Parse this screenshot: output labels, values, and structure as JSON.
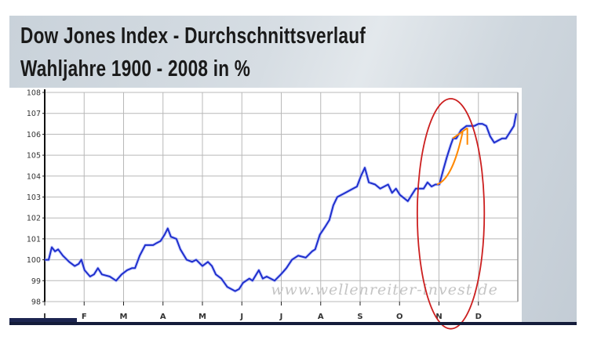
{
  "chart_data": {
    "type": "line",
    "title": "Dow Jones Index - Durchschnittsverlauf",
    "subtitle": "Wahljahre 1900 - 2008 in %",
    "xlabel": "",
    "ylabel": "",
    "xlim": [
      0,
      12
    ],
    "ylim": [
      98,
      108
    ],
    "x_tick_labels": [
      "J",
      "F",
      "M",
      "A",
      "M",
      "J",
      "J",
      "A",
      "S",
      "O",
      "N",
      "D"
    ],
    "y_tick_labels": [
      "108",
      "107",
      "106",
      "105",
      "104",
      "103",
      "102",
      "101",
      "100",
      "99",
      "98"
    ],
    "y_ticks": [
      108,
      107,
      106,
      105,
      104,
      103,
      102,
      101,
      100,
      99,
      98
    ],
    "grid": true,
    "legend": "none",
    "watermark": "www.wellenreiter-invest.de",
    "colors": {
      "line": "#1f2fcc",
      "ellipse": "#cc1f1f",
      "arrow": "#ff8800"
    },
    "series": [
      {
        "points": [
          [
            0,
            100.0
          ],
          [
            0.1,
            100.0
          ],
          [
            0.18,
            100.6
          ],
          [
            0.26,
            100.4
          ],
          [
            0.34,
            100.5
          ],
          [
            0.46,
            100.2
          ],
          [
            0.62,
            99.9
          ],
          [
            0.76,
            99.7
          ],
          [
            0.86,
            99.8
          ],
          [
            0.93,
            100.0
          ],
          [
            1.01,
            99.5
          ],
          [
            1.15,
            99.2
          ],
          [
            1.25,
            99.3
          ],
          [
            1.35,
            99.6
          ],
          [
            1.45,
            99.3
          ],
          [
            1.65,
            99.2
          ],
          [
            1.81,
            99.0
          ],
          [
            1.95,
            99.3
          ],
          [
            2.09,
            99.5
          ],
          [
            2.21,
            99.6
          ],
          [
            2.29,
            99.6
          ],
          [
            2.41,
            100.2
          ],
          [
            2.55,
            100.7
          ],
          [
            2.75,
            100.7
          ],
          [
            2.84,
            100.8
          ],
          [
            2.94,
            100.9
          ],
          [
            3.04,
            101.2
          ],
          [
            3.12,
            101.5
          ],
          [
            3.2,
            101.1
          ],
          [
            3.34,
            101.0
          ],
          [
            3.44,
            100.5
          ],
          [
            3.6,
            100.0
          ],
          [
            3.74,
            99.9
          ],
          [
            3.84,
            100.0
          ],
          [
            4.0,
            99.7
          ],
          [
            4.14,
            99.9
          ],
          [
            4.24,
            99.7
          ],
          [
            4.34,
            99.3
          ],
          [
            4.48,
            99.1
          ],
          [
            4.63,
            98.7
          ],
          [
            4.83,
            98.5
          ],
          [
            4.93,
            98.6
          ],
          [
            5.03,
            98.9
          ],
          [
            5.19,
            99.1
          ],
          [
            5.27,
            99.0
          ],
          [
            5.43,
            99.5
          ],
          [
            5.53,
            99.1
          ],
          [
            5.63,
            99.2
          ],
          [
            5.83,
            99.0
          ],
          [
            5.99,
            99.3
          ],
          [
            6.13,
            99.6
          ],
          [
            6.27,
            100.0
          ],
          [
            6.43,
            100.2
          ],
          [
            6.62,
            100.1
          ],
          [
            6.78,
            100.4
          ],
          [
            6.86,
            100.5
          ],
          [
            6.98,
            101.2
          ],
          [
            7.12,
            101.6
          ],
          [
            7.22,
            101.9
          ],
          [
            7.32,
            102.6
          ],
          [
            7.42,
            103.0
          ],
          [
            7.62,
            103.2
          ],
          [
            7.82,
            103.4
          ],
          [
            7.92,
            103.5
          ],
          [
            8.02,
            104.0
          ],
          [
            8.12,
            104.4
          ],
          [
            8.22,
            103.7
          ],
          [
            8.38,
            103.6
          ],
          [
            8.51,
            103.4
          ],
          [
            8.61,
            103.5
          ],
          [
            8.71,
            103.6
          ],
          [
            8.81,
            103.2
          ],
          [
            8.91,
            103.4
          ],
          [
            9.01,
            103.1
          ],
          [
            9.21,
            102.8
          ],
          [
            9.31,
            103.1
          ],
          [
            9.41,
            103.4
          ],
          [
            9.51,
            103.4
          ],
          [
            9.61,
            103.4
          ],
          [
            9.71,
            103.7
          ],
          [
            9.81,
            103.5
          ],
          [
            9.91,
            103.6
          ],
          [
            10.01,
            103.6
          ],
          [
            10.11,
            104.3
          ],
          [
            10.2,
            104.9
          ],
          [
            10.3,
            105.5
          ],
          [
            10.36,
            105.8
          ],
          [
            10.44,
            105.8
          ],
          [
            10.56,
            106.2
          ],
          [
            10.7,
            106.4
          ],
          [
            10.8,
            106.4
          ],
          [
            10.9,
            106.4
          ],
          [
            11.0,
            106.5
          ],
          [
            11.1,
            106.5
          ],
          [
            11.2,
            106.4
          ],
          [
            11.3,
            105.9
          ],
          [
            11.4,
            105.6
          ],
          [
            11.6,
            105.8
          ],
          [
            11.7,
            105.8
          ],
          [
            11.8,
            106.1
          ],
          [
            11.9,
            106.4
          ],
          [
            11.96,
            107.0
          ]
        ]
      }
    ],
    "annotations": {
      "ellipse": {
        "center": [
          10.3,
          102.2
        ],
        "rx_months": 0.85,
        "ry_percent": 5.5
      },
      "arrow_curve": [
        [
          9.95,
          103.6
        ],
        [
          10.25,
          103.8
        ],
        [
          10.45,
          104.8
        ],
        [
          10.6,
          106.1
        ]
      ],
      "arrow_line": [
        [
          10.35,
          105.8
        ],
        [
          10.72,
          106.3
        ]
      ],
      "arrow_tick": [
        [
          10.72,
          106.3
        ],
        [
          10.72,
          105.5
        ]
      ]
    }
  }
}
